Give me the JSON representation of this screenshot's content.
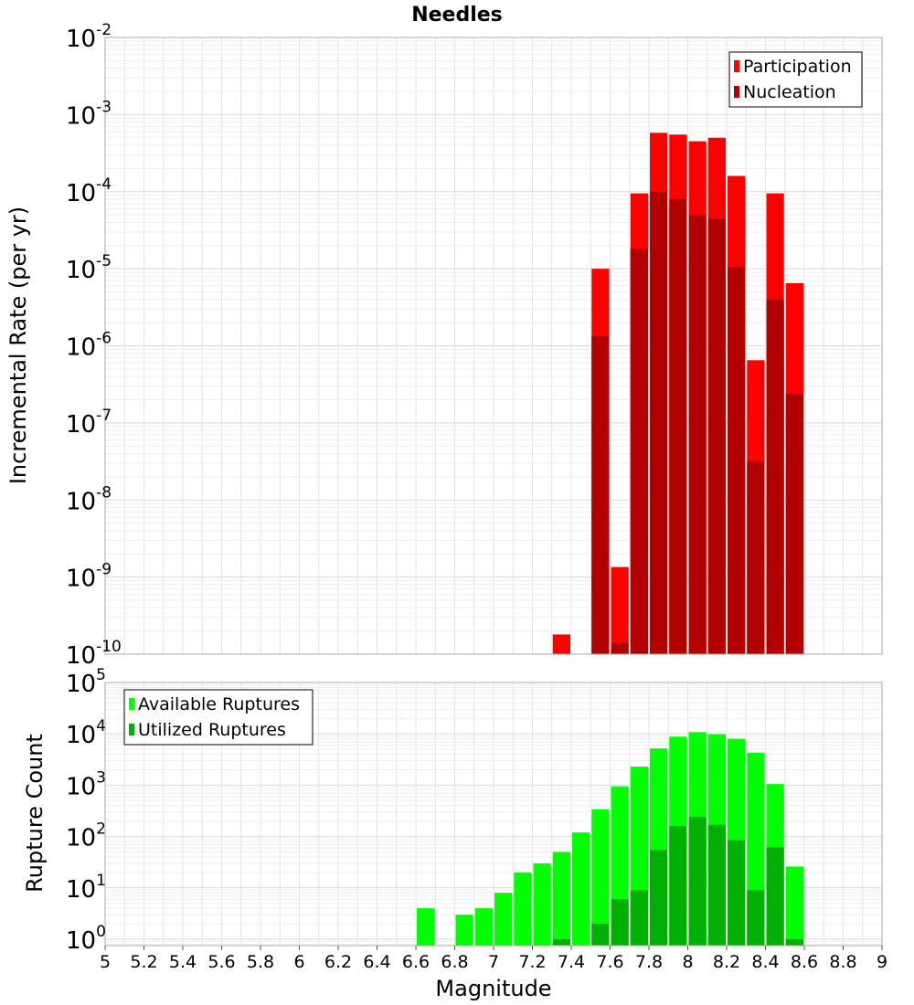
{
  "chart_data": [
    {
      "type": "bar",
      "title": "Needles",
      "ylabel": "Incremental Rate (per yr)",
      "xlabel": "",
      "y_scale": "log",
      "ylim": [
        1e-10,
        0.01
      ],
      "xlim": [
        5,
        9
      ],
      "y_tick_exponents": [
        "-10",
        "-9",
        "-8",
        "-7",
        "-6",
        "-5",
        "-4",
        "-3",
        "-2"
      ],
      "grid": true,
      "legend_position": "top-right",
      "x": [
        7.35,
        7.55,
        7.65,
        7.75,
        7.85,
        7.95,
        8.05,
        8.15,
        8.25,
        8.35,
        8.45,
        8.55
      ],
      "series": [
        {
          "name": "Participation",
          "color": "#ff0000",
          "values": [
            1.8e-10,
            1e-05,
            1.35e-09,
            9.5e-05,
            0.00058,
            0.00055,
            0.00045,
            0.0005,
            0.00016,
            6.5e-07,
            9.5e-05,
            6.5e-06
          ]
        },
        {
          "name": "Nucleation",
          "color": "#b20000",
          "values": [
            null,
            1.35e-06,
            1.4e-10,
            1.8e-05,
            0.0001,
            8e-05,
            5e-05,
            4.5e-05,
            1.05e-05,
            3.2e-08,
            4e-06,
            2.4e-07
          ]
        }
      ]
    },
    {
      "type": "bar",
      "title": "",
      "ylabel": "Rupture Count",
      "xlabel": "Magnitude",
      "y_scale": "log",
      "ylim": [
        0.75,
        100000
      ],
      "xlim": [
        5,
        9
      ],
      "y_tick_exponents": [
        "0",
        "1",
        "2",
        "3",
        "4",
        "5"
      ],
      "x_tick_labels": [
        "5",
        "5.2",
        "5.4",
        "5.6",
        "5.8",
        "6",
        "6.2",
        "6.4",
        "6.6",
        "6.8",
        "7",
        "7.2",
        "7.4",
        "7.6",
        "7.8",
        "8",
        "8.2",
        "8.4",
        "8.6",
        "8.8",
        "9"
      ],
      "grid": true,
      "legend_position": "top-left",
      "x": [
        6.65,
        6.85,
        6.95,
        7.05,
        7.15,
        7.25,
        7.35,
        7.45,
        7.55,
        7.65,
        7.75,
        7.85,
        7.95,
        8.05,
        8.15,
        8.25,
        8.35,
        8.45,
        8.55
      ],
      "series": [
        {
          "name": "Available Ruptures",
          "color": "#00ff00",
          "values": [
            4,
            3,
            4,
            8,
            20,
            30,
            50,
            120,
            340,
            950,
            2300,
            5200,
            8800,
            10800,
            9800,
            8000,
            4300,
            1050,
            26
          ]
        },
        {
          "name": "Utilized Ruptures",
          "color": "#00b000",
          "values": [
            null,
            null,
            null,
            null,
            null,
            null,
            1,
            null,
            2,
            6,
            9,
            55,
            160,
            240,
            170,
            85,
            9,
            62,
            1
          ]
        }
      ]
    }
  ]
}
